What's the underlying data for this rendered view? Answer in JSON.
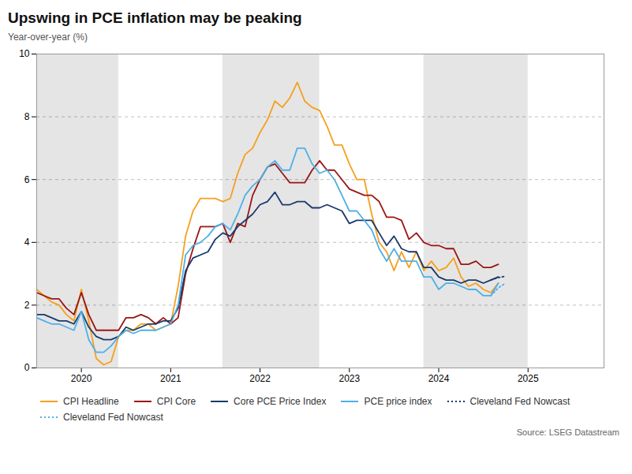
{
  "chart_data": {
    "type": "line",
    "title": "Upswing in PCE inflation may be peaking",
    "ylabel": "Year-over-year (%)",
    "source": "Source: LSEG Datastream",
    "xlim": [
      2019.5,
      2025.85
    ],
    "xticks": [
      2020,
      2021,
      2022,
      2023,
      2024,
      2025
    ],
    "ylim": [
      0,
      10
    ],
    "yticks": [
      0,
      2,
      4,
      6,
      8,
      10
    ],
    "grid": true,
    "legend": "bottom",
    "shaded_regions": {
      "color": "#e5e5e5",
      "ranges": [
        [
          2019.5,
          2020.417
        ],
        [
          2021.583,
          2022.667
        ],
        [
          2023.833,
          2025.0
        ]
      ]
    },
    "series": [
      {
        "name": "CPI Headline",
        "color": "#f5a01e",
        "line_style": "solid",
        "x": [
          2019.5,
          2019.583,
          2019.667,
          2019.75,
          2019.833,
          2019.917,
          2020.0,
          2020.083,
          2020.167,
          2020.25,
          2020.333,
          2020.417,
          2020.5,
          2020.583,
          2020.667,
          2020.75,
          2020.833,
          2020.917,
          2021.0,
          2021.083,
          2021.167,
          2021.25,
          2021.333,
          2021.417,
          2021.5,
          2021.583,
          2021.667,
          2021.75,
          2021.833,
          2021.917,
          2022.0,
          2022.083,
          2022.167,
          2022.25,
          2022.333,
          2022.417,
          2022.5,
          2022.583,
          2022.667,
          2022.75,
          2022.833,
          2022.917,
          2023.0,
          2023.083,
          2023.167,
          2023.25,
          2023.333,
          2023.417,
          2023.5,
          2023.583,
          2023.667,
          2023.75,
          2023.833,
          2023.917,
          2024.0,
          2024.083,
          2024.167,
          2024.25,
          2024.333,
          2024.417,
          2024.5,
          2024.583,
          2024.667
        ],
        "values": [
          2.5,
          2.3,
          2.1,
          2.0,
          1.7,
          1.5,
          2.5,
          1.5,
          0.3,
          0.1,
          0.2,
          1.0,
          1.2,
          1.2,
          1.4,
          1.4,
          1.2,
          1.3,
          1.4,
          2.6,
          4.2,
          5.0,
          5.4,
          5.4,
          5.4,
          5.3,
          5.4,
          6.2,
          6.8,
          7.0,
          7.5,
          7.9,
          8.5,
          8.3,
          8.6,
          9.1,
          8.5,
          8.3,
          8.2,
          7.7,
          7.1,
          7.1,
          6.5,
          6.0,
          6.0,
          4.9,
          4.0,
          3.7,
          3.1,
          3.7,
          3.2,
          3.7,
          3.1,
          3.4,
          3.1,
          3.2,
          3.5,
          2.9,
          2.6,
          2.7,
          2.5,
          2.4,
          2.7
        ]
      },
      {
        "name": "CPI Core",
        "color": "#9b1515",
        "line_style": "solid",
        "x": [
          2019.5,
          2019.583,
          2019.667,
          2019.75,
          2019.833,
          2019.917,
          2020.0,
          2020.083,
          2020.167,
          2020.25,
          2020.333,
          2020.417,
          2020.5,
          2020.583,
          2020.667,
          2020.75,
          2020.833,
          2020.917,
          2021.0,
          2021.083,
          2021.167,
          2021.25,
          2021.333,
          2021.417,
          2021.5,
          2021.583,
          2021.667,
          2021.75,
          2021.833,
          2021.917,
          2022.0,
          2022.083,
          2022.167,
          2022.25,
          2022.333,
          2022.417,
          2022.5,
          2022.583,
          2022.667,
          2022.75,
          2022.833,
          2022.917,
          2023.0,
          2023.083,
          2023.167,
          2023.25,
          2023.333,
          2023.417,
          2023.5,
          2023.583,
          2023.667,
          2023.75,
          2023.833,
          2023.917,
          2024.0,
          2024.083,
          2024.167,
          2024.25,
          2024.333,
          2024.417,
          2024.5,
          2024.583,
          2024.667
        ],
        "values": [
          2.4,
          2.3,
          2.2,
          2.2,
          1.9,
          1.7,
          2.4,
          1.7,
          1.2,
          1.2,
          1.2,
          1.2,
          1.6,
          1.6,
          1.7,
          1.6,
          1.4,
          1.6,
          1.4,
          1.6,
          3.0,
          3.8,
          4.5,
          4.5,
          4.5,
          4.6,
          4.0,
          4.6,
          4.5,
          5.5,
          6.0,
          6.4,
          6.5,
          6.2,
          5.9,
          5.9,
          5.9,
          6.3,
          6.6,
          6.3,
          6.3,
          6.0,
          5.7,
          5.6,
          5.5,
          5.5,
          5.3,
          4.8,
          4.8,
          4.7,
          4.1,
          4.3,
          4.0,
          3.9,
          3.9,
          3.8,
          3.8,
          3.3,
          3.3,
          3.4,
          3.2,
          3.2,
          3.3
        ]
      },
      {
        "name": "Core PCE Price Index",
        "color": "#1a3a6b",
        "line_style": "solid",
        "x": [
          2019.5,
          2019.583,
          2019.667,
          2019.75,
          2019.833,
          2019.917,
          2020.0,
          2020.083,
          2020.167,
          2020.25,
          2020.333,
          2020.417,
          2020.5,
          2020.583,
          2020.667,
          2020.75,
          2020.833,
          2020.917,
          2021.0,
          2021.083,
          2021.167,
          2021.25,
          2021.333,
          2021.417,
          2021.5,
          2021.583,
          2021.667,
          2021.75,
          2021.833,
          2021.917,
          2022.0,
          2022.083,
          2022.167,
          2022.25,
          2022.333,
          2022.417,
          2022.5,
          2022.583,
          2022.667,
          2022.75,
          2022.833,
          2022.917,
          2023.0,
          2023.083,
          2023.167,
          2023.25,
          2023.333,
          2023.417,
          2023.5,
          2023.583,
          2023.667,
          2023.75,
          2023.833,
          2023.917,
          2024.0,
          2024.083,
          2024.167,
          2024.25,
          2024.333,
          2024.417,
          2024.5,
          2024.583,
          2024.667
        ],
        "values": [
          1.7,
          1.7,
          1.6,
          1.5,
          1.5,
          1.4,
          1.8,
          1.3,
          1.0,
          0.9,
          0.9,
          1.0,
          1.3,
          1.2,
          1.3,
          1.4,
          1.4,
          1.5,
          1.5,
          1.9,
          3.1,
          3.5,
          3.6,
          3.7,
          4.1,
          4.3,
          4.2,
          4.5,
          4.7,
          4.9,
          5.2,
          5.3,
          5.6,
          5.2,
          5.2,
          5.3,
          5.3,
          5.1,
          5.1,
          5.2,
          5.1,
          5.0,
          4.6,
          4.7,
          4.7,
          4.7,
          4.3,
          3.9,
          4.2,
          3.8,
          3.7,
          3.7,
          3.2,
          3.2,
          2.9,
          2.8,
          2.8,
          2.7,
          2.8,
          2.8,
          2.7,
          2.8,
          2.9
        ]
      },
      {
        "name": "PCE price index",
        "color": "#4db0e8",
        "line_style": "solid",
        "x": [
          2019.5,
          2019.583,
          2019.667,
          2019.75,
          2019.833,
          2019.917,
          2020.0,
          2020.083,
          2020.167,
          2020.25,
          2020.333,
          2020.417,
          2020.5,
          2020.583,
          2020.667,
          2020.75,
          2020.833,
          2020.917,
          2021.0,
          2021.083,
          2021.167,
          2021.25,
          2021.333,
          2021.417,
          2021.5,
          2021.583,
          2021.667,
          2021.75,
          2021.833,
          2021.917,
          2022.0,
          2022.083,
          2022.167,
          2022.25,
          2022.333,
          2022.417,
          2022.5,
          2022.583,
          2022.667,
          2022.75,
          2022.833,
          2022.917,
          2023.0,
          2023.083,
          2023.167,
          2023.25,
          2023.333,
          2023.417,
          2023.5,
          2023.583,
          2023.667,
          2023.75,
          2023.833,
          2023.917,
          2024.0,
          2024.083,
          2024.167,
          2024.25,
          2024.333,
          2024.417,
          2024.5,
          2024.583,
          2024.667
        ],
        "values": [
          1.6,
          1.5,
          1.4,
          1.4,
          1.3,
          1.2,
          1.8,
          0.9,
          0.5,
          0.5,
          0.7,
          1.0,
          1.2,
          1.1,
          1.2,
          1.2,
          1.2,
          1.3,
          1.4,
          2.0,
          3.6,
          3.9,
          4.0,
          4.2,
          4.5,
          4.6,
          4.4,
          4.9,
          5.5,
          5.8,
          6.0,
          6.4,
          6.6,
          6.3,
          6.3,
          7.0,
          7.0,
          6.5,
          6.2,
          6.3,
          6.0,
          5.5,
          5.0,
          5.0,
          4.7,
          4.4,
          3.8,
          3.4,
          3.8,
          3.4,
          3.4,
          3.4,
          2.9,
          2.9,
          2.5,
          2.7,
          2.7,
          2.6,
          2.5,
          2.5,
          2.3,
          2.3,
          2.7
        ]
      },
      {
        "name": "Cleveland Fed Nowcast",
        "color": "#1a3a6b",
        "line_style": "dotted",
        "x": [
          2024.583,
          2024.667,
          2024.75
        ],
        "values": [
          2.8,
          2.88,
          2.92
        ]
      },
      {
        "name": "Cleveland Fed Nowcast",
        "color": "#4db0e8",
        "line_style": "dotted",
        "x": [
          2024.583,
          2024.667,
          2024.75
        ],
        "values": [
          2.3,
          2.55,
          2.7
        ]
      }
    ]
  }
}
